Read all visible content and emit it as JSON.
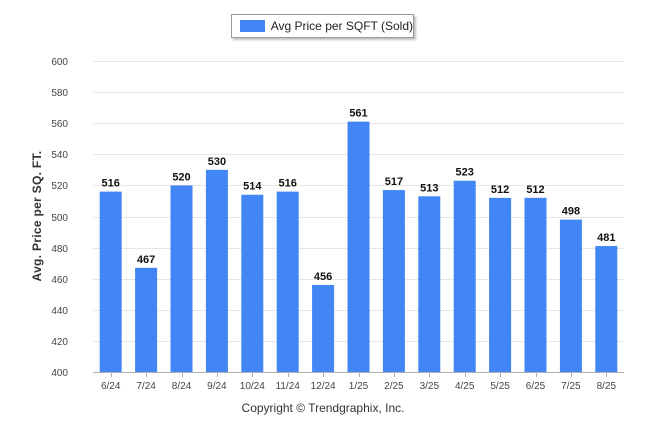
{
  "legend": {
    "label": "Avg Price per SQFT (Sold)"
  },
  "copyright": "Copyright © Trendgraphix, Inc.",
  "colors": {
    "bar": "#4285f4",
    "grid": "#e6e6e6",
    "axis": "#b0b0b0",
    "tick_text": "#444444",
    "value_text": "#111111"
  },
  "chart_data": {
    "type": "bar",
    "title": "",
    "xlabel": "",
    "ylabel": "Avg. Price per SQ. FT.",
    "ylim": [
      400,
      600
    ],
    "yticks": [
      400,
      420,
      440,
      460,
      480,
      500,
      520,
      540,
      560,
      580,
      600
    ],
    "grid": true,
    "legend_position": "top-center",
    "categories": [
      "6/24",
      "7/24",
      "8/24",
      "9/24",
      "10/24",
      "11/24",
      "12/24",
      "1/25",
      "2/25",
      "3/25",
      "4/25",
      "5/25",
      "6/25",
      "7/25",
      "8/25"
    ],
    "series": [
      {
        "name": "Avg Price per SQFT (Sold)",
        "values": [
          516,
          467,
          520,
          530,
          514,
          516,
          456,
          561,
          517,
          513,
          523,
          512,
          512,
          498,
          481
        ]
      }
    ]
  }
}
